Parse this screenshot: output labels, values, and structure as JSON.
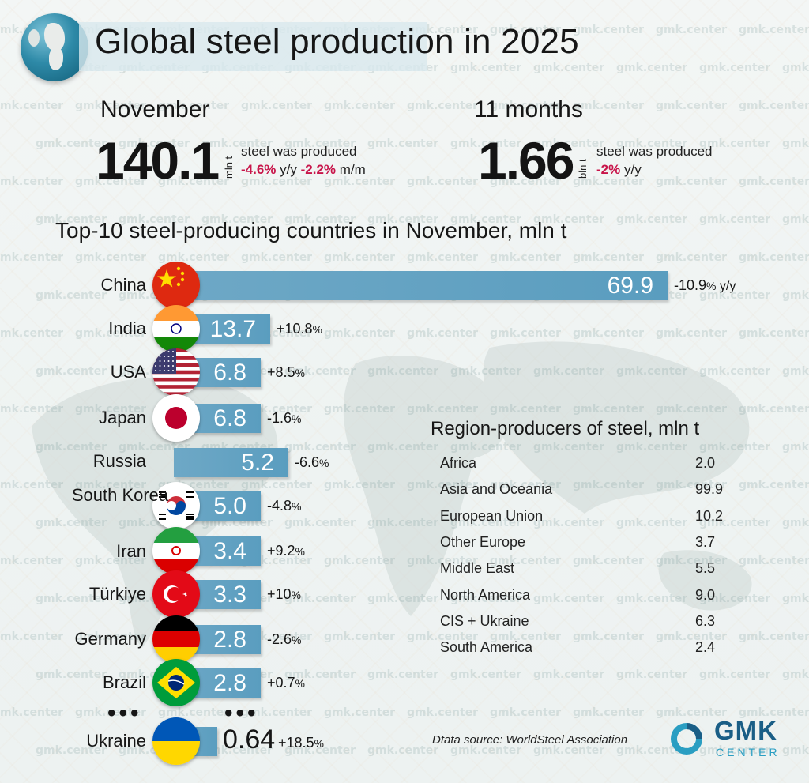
{
  "header": {
    "title": "Global steel production in 2025",
    "watermark": "gmk.center"
  },
  "kpi": {
    "november": {
      "period": "November",
      "value": "140.1",
      "unit": "mln t",
      "text": "steel was produced",
      "yoy": "-4.6%",
      "yoy_suffix": "y/y",
      "mom": "-2.2%",
      "mom_suffix": "m/m"
    },
    "eleven_months": {
      "period": "11 months",
      "value": "1.66",
      "unit": "bln t",
      "text": "steel was produced",
      "yoy": "-2%",
      "yoy_suffix": "y/y"
    }
  },
  "chart_data": [
    {
      "type": "bar",
      "orientation": "horizontal",
      "title": "Top-10 steel-producing countries in November, mln t",
      "categories": [
        "China",
        "India",
        "USA",
        "Japan",
        "Russia",
        "South Korea",
        "Iran",
        "Türkiye",
        "Germany",
        "Brazil",
        "Ukraine"
      ],
      "values": [
        69.9,
        13.7,
        6.8,
        6.8,
        5.2,
        5.0,
        3.4,
        3.3,
        2.8,
        2.8,
        0.64
      ],
      "value_labels": [
        "69.9",
        "13.7",
        "6.8",
        "6.8",
        "5.2",
        "5.0",
        "3.4",
        "3.3",
        "2.8",
        "2.8",
        "0.64"
      ],
      "changes": [
        {
          "num": "-10.9",
          "pct": "%",
          "suffix": " y/y"
        },
        {
          "num": "+10.8",
          "pct": "%",
          "suffix": ""
        },
        {
          "num": "+8.5",
          "pct": "%",
          "suffix": ""
        },
        {
          "num": "-1.6",
          "pct": "%",
          "suffix": ""
        },
        {
          "num": "-6.6",
          "pct": "%",
          "suffix": ""
        },
        {
          "num": "-4.8",
          "pct": "%",
          "suffix": ""
        },
        {
          "num": "+9.2",
          "pct": "%",
          "suffix": ""
        },
        {
          "num": "+10",
          "pct": "%",
          "suffix": ""
        },
        {
          "num": "-2.6",
          "pct": "%",
          "suffix": ""
        },
        {
          "num": "+0.7",
          "pct": "%",
          "suffix": ""
        },
        {
          "num": "+18.5",
          "pct": "%",
          "suffix": ""
        }
      ],
      "bar_color": "#5a9dbf",
      "ellipsis": "•••"
    },
    {
      "type": "table",
      "title": "Region-producers of steel, mln t",
      "rows": [
        {
          "region": "Africa",
          "value": "2.0"
        },
        {
          "region": "Asia and Oceania",
          "value": "99.9"
        },
        {
          "region": "European Union",
          "value": "10.2"
        },
        {
          "region": "Other Europe",
          "value": "3.7"
        },
        {
          "region": "Middle East",
          "value": "5.5"
        },
        {
          "region": "North America",
          "value": "9.0"
        },
        {
          "region": "CIS + Ukraine",
          "value": "6.3"
        },
        {
          "region": "South America",
          "value": "2.4"
        }
      ]
    }
  ],
  "footer": {
    "source": "Dtata source: WorldSteel Association",
    "logo_main": "GMK",
    "logo_sub": "CENTER"
  },
  "colors": {
    "negative_accent": "#c8154a",
    "bar": "#5a9dbf",
    "logo_blue": "#1a5e86",
    "logo_cyan": "#2a9ec2"
  }
}
